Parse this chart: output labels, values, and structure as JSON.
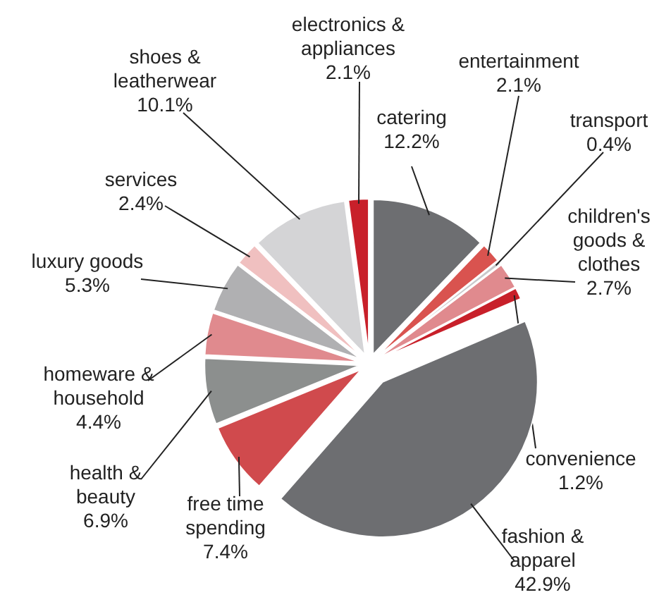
{
  "chart_data": {
    "type": "pie",
    "categories": [
      "catering",
      "entertainment",
      "transport",
      "children's\ngoods &\nclothes",
      "convenience",
      "fashion &\napparel",
      "free time\nspending",
      "health &\nbeauty",
      "homeware &\nhousehold",
      "luxury goods",
      "services",
      "shoes &\nleatherwear",
      "electronics &\nappliances"
    ],
    "values": [
      12.2,
      2.1,
      0.4,
      2.7,
      1.2,
      42.9,
      7.4,
      6.9,
      4.4,
      5.3,
      2.4,
      10.1,
      2.1
    ],
    "value_labels": [
      "12.2%",
      "2.1%",
      "0.4%",
      "2.7%",
      "1.2%",
      "42.9%",
      "7.4%",
      "6.9%",
      "4.4%",
      "5.3%",
      "2.4%",
      "10.1%",
      "2.1%"
    ],
    "colors": [
      "#6d6e71",
      "#d9534f",
      "#c9c9cb",
      "#e08a8e",
      "#c8202a",
      "#6d6e71",
      "#d04a4d",
      "#8c8f8e",
      "#e08a8e",
      "#b0b0b2",
      "#f0c0c0",
      "#d4d4d6",
      "#c8202a"
    ]
  }
}
